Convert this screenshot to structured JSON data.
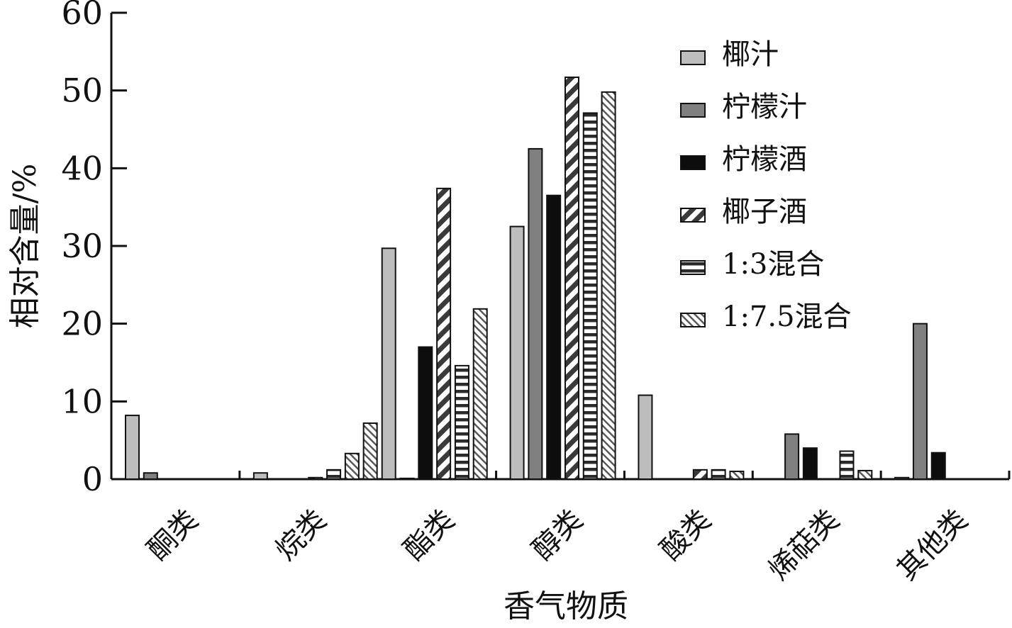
{
  "chart_data": {
    "type": "bar",
    "title": "",
    "xlabel": "香气物质",
    "ylabel": "相对含量/%",
    "ylim": [
      0,
      60
    ],
    "yticks": [
      0,
      10,
      20,
      30,
      40,
      50,
      60
    ],
    "grid": false,
    "legend_position": "top-right",
    "categories": [
      "酮类",
      "烷类",
      "酯类",
      "醇类",
      "酸类",
      "烯萜类",
      "其他类"
    ],
    "series": [
      {
        "name": "椰汁",
        "pattern": "solid",
        "color": "#bdbdbd",
        "values": [
          8.2,
          0.8,
          29.7,
          32.5,
          10.8,
          0,
          0.2
        ]
      },
      {
        "name": "柠檬汁",
        "pattern": "solid",
        "color": "#808080",
        "values": [
          0.8,
          0,
          0.1,
          42.5,
          0,
          5.8,
          20.0
        ]
      },
      {
        "name": "柠檬酒",
        "pattern": "solid",
        "color": "#0d0d0d",
        "values": [
          0,
          0,
          17.0,
          36.5,
          0,
          4.0,
          3.4
        ]
      },
      {
        "name": "椰子酒",
        "pattern": "diagonal-thick",
        "color": "#3a3a3a",
        "values": [
          0,
          0.2,
          37.4,
          51.7,
          1.2,
          0,
          0
        ]
      },
      {
        "name": "1:3混合",
        "pattern": "horizontal",
        "color": "#2a2a2a",
        "values": [
          0,
          1.2,
          14.6,
          47.1,
          1.2,
          3.6,
          0
        ]
      },
      {
        "name": "1:7.5混合",
        "pattern": "diagonal-fine",
        "color": "#555555",
        "values": [
          0,
          3.3,
          21.9,
          49.8,
          1.0,
          1.1,
          0
        ]
      },
      {
        "name": "",
        "pattern": "diagonal-fine",
        "color": "#555555",
        "values": [
          0,
          7.2,
          0,
          0,
          0,
          0,
          0
        ]
      }
    ]
  }
}
